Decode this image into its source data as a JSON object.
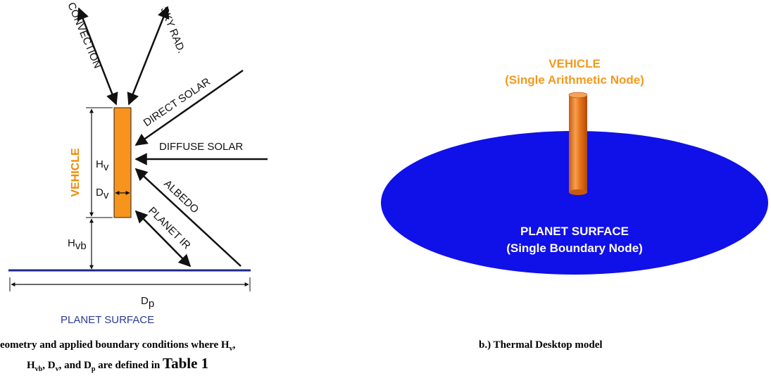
{
  "diagram_a": {
    "labels": {
      "convection": "CONVECTION",
      "sky_rad": "SKY RAD.",
      "direct_solar": "DIRECT SOLAR",
      "diffuse_solar": "DIFFUSE SOLAR",
      "albedo": "ALBEDO",
      "planet_ir": "PLANET IR",
      "vehicle": "VEHICLE",
      "planet_surface": "PLANET SURFACE"
    },
    "dimensions": {
      "hv": {
        "main": "H",
        "sub": "v"
      },
      "dv": {
        "main": "D",
        "sub": "v"
      },
      "hvb": {
        "main": "H",
        "sub": "vb"
      },
      "dp": {
        "main": "D",
        "sub": "p"
      }
    },
    "colors": {
      "vehicle": "#f7941d",
      "planet_surface": "#1c2a8c",
      "vehicle_label": "#f08a00"
    }
  },
  "model_b": {
    "vehicle_title": "VEHICLE",
    "vehicle_subtitle": "(Single Arithmetic Node)",
    "surface_title": "PLANET SURFACE",
    "surface_subtitle": "(Single Boundary Node)",
    "colors": {
      "disc": "#1010e8",
      "cylinder": "#e8731a",
      "label": "#f39a1e"
    }
  },
  "captions": {
    "a_line1_pre": "eometry and applied boundary conditions where H",
    "a_line1_sub": "v",
    "a_line1_post": ",",
    "a_line2_h": "H",
    "a_line2_hsub": "vb",
    "a_line2_d": ", D",
    "a_line2_dsub": "v",
    "a_line2_dp": ", and D",
    "a_line2_dpsub": "p",
    "a_line2_mid": " are defined in ",
    "a_line2_table": "Table 1",
    "b": "b.)  Thermal Desktop model"
  }
}
